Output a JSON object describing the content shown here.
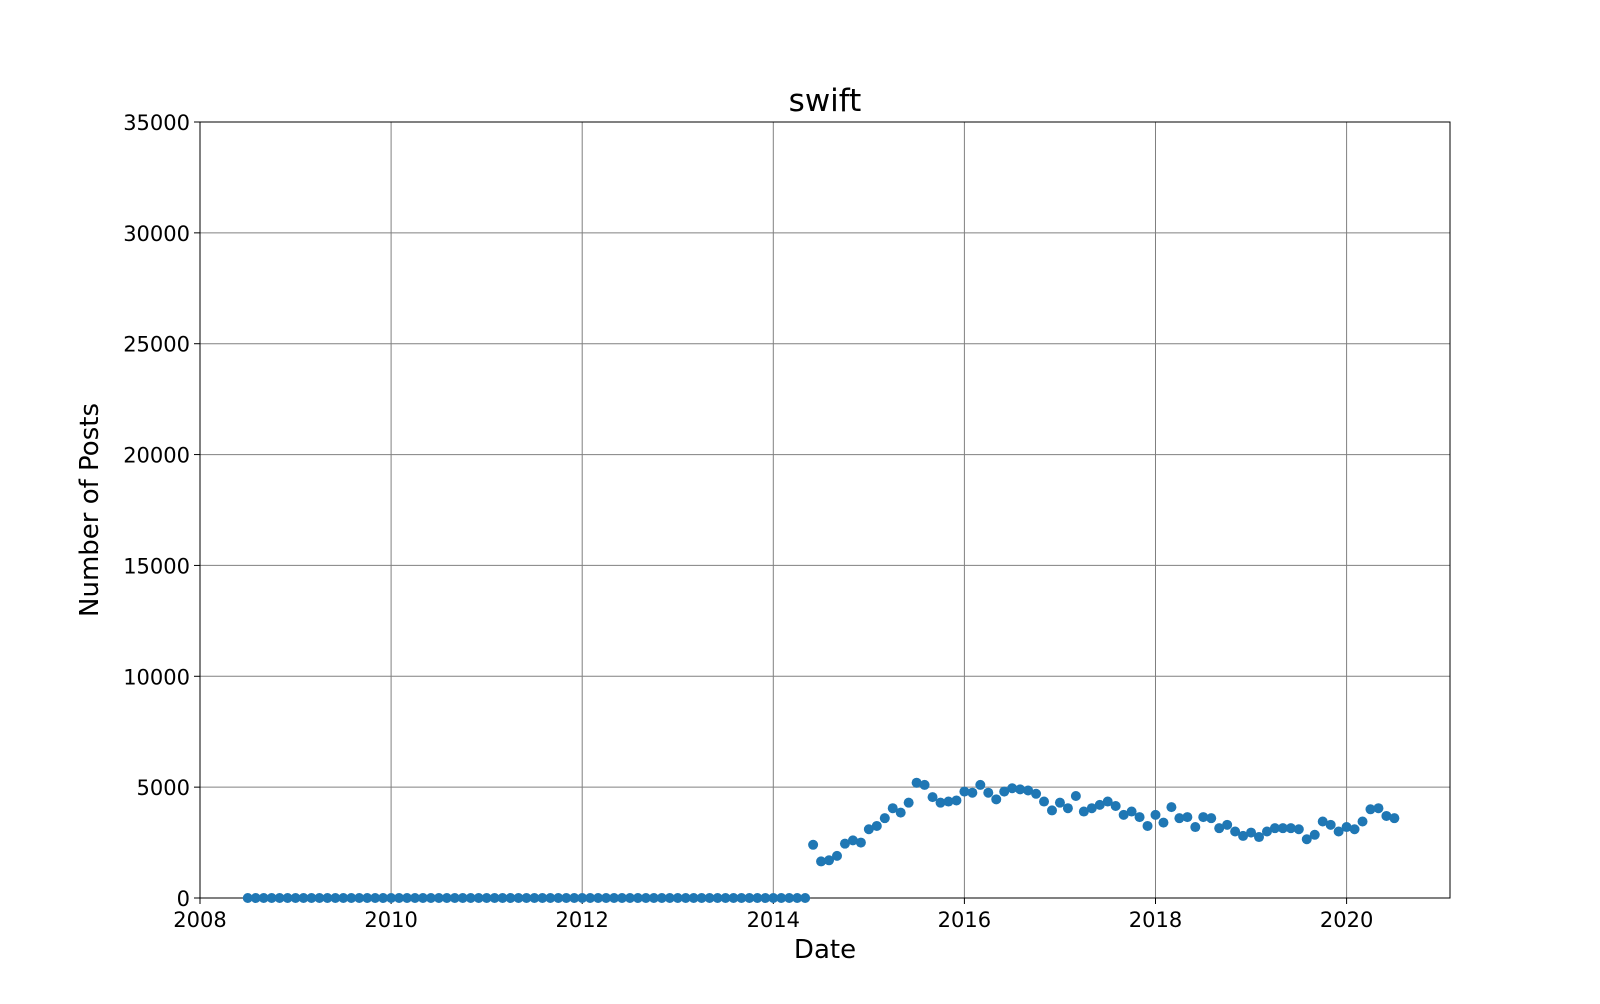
{
  "chart_data": {
    "type": "scatter",
    "title": "swift",
    "xlabel": "Date",
    "ylabel": "Number of Posts",
    "xlim": [
      "2008-01-01",
      "2021-01-31"
    ],
    "ylim": [
      0,
      35000
    ],
    "grid": true,
    "marker_color": "#1f77b4",
    "x_ticks": [
      "2008",
      "2010",
      "2012",
      "2014",
      "2016",
      "2018",
      "2020"
    ],
    "y_ticks": [
      "0",
      "5000",
      "10000",
      "15000",
      "20000",
      "25000",
      "30000",
      "35000"
    ],
    "series": [
      {
        "x": [
          "2008-07",
          "2008-08",
          "2008-09",
          "2008-10",
          "2008-11",
          "2008-12",
          "2009-01",
          "2009-02",
          "2009-03",
          "2009-04",
          "2009-05",
          "2009-06",
          "2009-07",
          "2009-08",
          "2009-09",
          "2009-10",
          "2009-11",
          "2009-12",
          "2010-01",
          "2010-02",
          "2010-03",
          "2010-04",
          "2010-05",
          "2010-06",
          "2010-07",
          "2010-08",
          "2010-09",
          "2010-10",
          "2010-11",
          "2010-12",
          "2011-01",
          "2011-02",
          "2011-03",
          "2011-04",
          "2011-05",
          "2011-06",
          "2011-07",
          "2011-08",
          "2011-09",
          "2011-10",
          "2011-11",
          "2011-12",
          "2012-01",
          "2012-02",
          "2012-03",
          "2012-04",
          "2012-05",
          "2012-06",
          "2012-07",
          "2012-08",
          "2012-09",
          "2012-10",
          "2012-11",
          "2012-12",
          "2013-01",
          "2013-02",
          "2013-03",
          "2013-04",
          "2013-05",
          "2013-06",
          "2013-07",
          "2013-08",
          "2013-09",
          "2013-10",
          "2013-11",
          "2013-12",
          "2014-01",
          "2014-02",
          "2014-03",
          "2014-04",
          "2014-05",
          "2014-06",
          "2014-07",
          "2014-08",
          "2014-09",
          "2014-10",
          "2014-11",
          "2014-12",
          "2015-01",
          "2015-02",
          "2015-03",
          "2015-04",
          "2015-05",
          "2015-06",
          "2015-07",
          "2015-08",
          "2015-09",
          "2015-10",
          "2015-11",
          "2015-12",
          "2016-01",
          "2016-02",
          "2016-03",
          "2016-04",
          "2016-05",
          "2016-06",
          "2016-07",
          "2016-08",
          "2016-09",
          "2016-10",
          "2016-11",
          "2016-12",
          "2017-01",
          "2017-02",
          "2017-03",
          "2017-04",
          "2017-05",
          "2017-06",
          "2017-07",
          "2017-08",
          "2017-09",
          "2017-10",
          "2017-11",
          "2017-12",
          "2018-01",
          "2018-02",
          "2018-03",
          "2018-04",
          "2018-05",
          "2018-06",
          "2018-07",
          "2018-08",
          "2018-09",
          "2018-10",
          "2018-11",
          "2018-12",
          "2019-01",
          "2019-02",
          "2019-03",
          "2019-04",
          "2019-05",
          "2019-06",
          "2019-07",
          "2019-08",
          "2019-09",
          "2019-10",
          "2019-11",
          "2019-12",
          "2020-01",
          "2020-02",
          "2020-03",
          "2020-04",
          "2020-05",
          "2020-06",
          "2020-07"
        ],
        "y": [
          0,
          0,
          0,
          0,
          0,
          0,
          0,
          0,
          0,
          0,
          0,
          0,
          0,
          0,
          0,
          0,
          0,
          0,
          0,
          0,
          0,
          0,
          0,
          0,
          0,
          0,
          0,
          0,
          0,
          0,
          0,
          0,
          0,
          0,
          0,
          0,
          0,
          0,
          0,
          0,
          0,
          0,
          0,
          0,
          0,
          0,
          0,
          0,
          0,
          0,
          0,
          0,
          0,
          0,
          0,
          0,
          0,
          0,
          0,
          0,
          0,
          0,
          0,
          0,
          0,
          0,
          0,
          0,
          0,
          0,
          0,
          2400,
          1650,
          1700,
          1900,
          2450,
          2600,
          2500,
          3100,
          3250,
          3600,
          4050,
          3850,
          4300,
          5200,
          5100,
          4550,
          4300,
          4350,
          4400,
          4800,
          4750,
          5100,
          4750,
          4450,
          4800,
          4950,
          4900,
          4850,
          4700,
          4350,
          3950,
          4300,
          4050,
          4600,
          3900,
          4050,
          4200,
          4350,
          4150,
          3750,
          3900,
          3650,
          3250,
          3750,
          3400,
          4100,
          3600,
          3650,
          3200,
          3650,
          3600,
          3150,
          3300,
          3000,
          2800,
          2950,
          2750,
          3000,
          3150,
          3150,
          3150,
          3100,
          2650,
          2850,
          3450,
          3300,
          3000,
          3200,
          3100,
          3450,
          4000,
          4050,
          3700,
          3600
        ]
      }
    ]
  }
}
